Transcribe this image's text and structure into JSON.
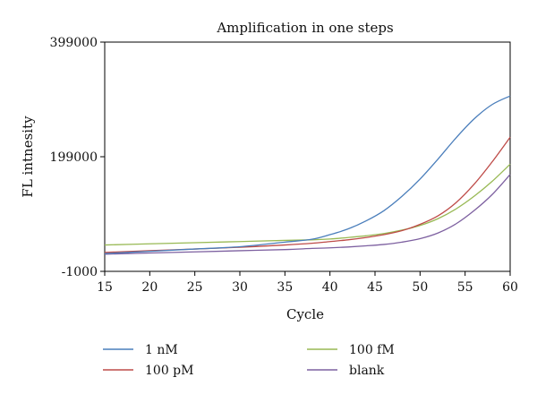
{
  "chart_data": {
    "type": "line",
    "title": "Amplification in one steps",
    "xlabel": "Cycle",
    "ylabel": "FL intnesity",
    "xlim": [
      15,
      60
    ],
    "ylim": [
      -1000,
      399000
    ],
    "x_ticks": [
      15,
      20,
      25,
      30,
      35,
      40,
      45,
      50,
      55,
      60
    ],
    "y_ticks": [
      -1000,
      199000,
      399000
    ],
    "y_tick_labels": [
      "-1000",
      "199000",
      "399000"
    ],
    "x_tick_labels": [
      "15",
      "20",
      "25",
      "30",
      "35",
      "40",
      "45",
      "50",
      "55",
      "60"
    ],
    "grid": false,
    "legend_position": "bottom",
    "x": [
      15,
      20,
      25,
      30,
      35,
      38,
      40,
      42,
      44,
      46,
      48,
      50,
      52,
      54,
      56,
      58,
      60
    ],
    "series": [
      {
        "name": "1 nM",
        "color": "#4a7ebb",
        "values": [
          30000,
          34000,
          38000,
          42000,
          50000,
          55000,
          63000,
          73000,
          87000,
          105000,
          130000,
          160000,
          195000,
          232000,
          265000,
          290000,
          305000
        ]
      },
      {
        "name": "100 pM",
        "color": "#be4b48",
        "values": [
          32000,
          35000,
          38000,
          41000,
          45000,
          48000,
          51000,
          54000,
          58000,
          63000,
          70000,
          81000,
          96000,
          119000,
          151000,
          190000,
          233000
        ]
      },
      {
        "name": "100 fM",
        "color": "#98b954",
        "values": [
          45000,
          47000,
          49000,
          51000,
          53000,
          54000,
          55500,
          58000,
          61000,
          65000,
          71000,
          79000,
          91000,
          108000,
          130000,
          156000,
          186000
        ]
      },
      {
        "name": "blank",
        "color": "#7d60a0",
        "values": [
          29000,
          31000,
          33000,
          35000,
          37000,
          39000,
          40000,
          41500,
          43500,
          46000,
          50000,
          56000,
          66000,
          82000,
          105000,
          133000,
          168000
        ]
      }
    ]
  }
}
